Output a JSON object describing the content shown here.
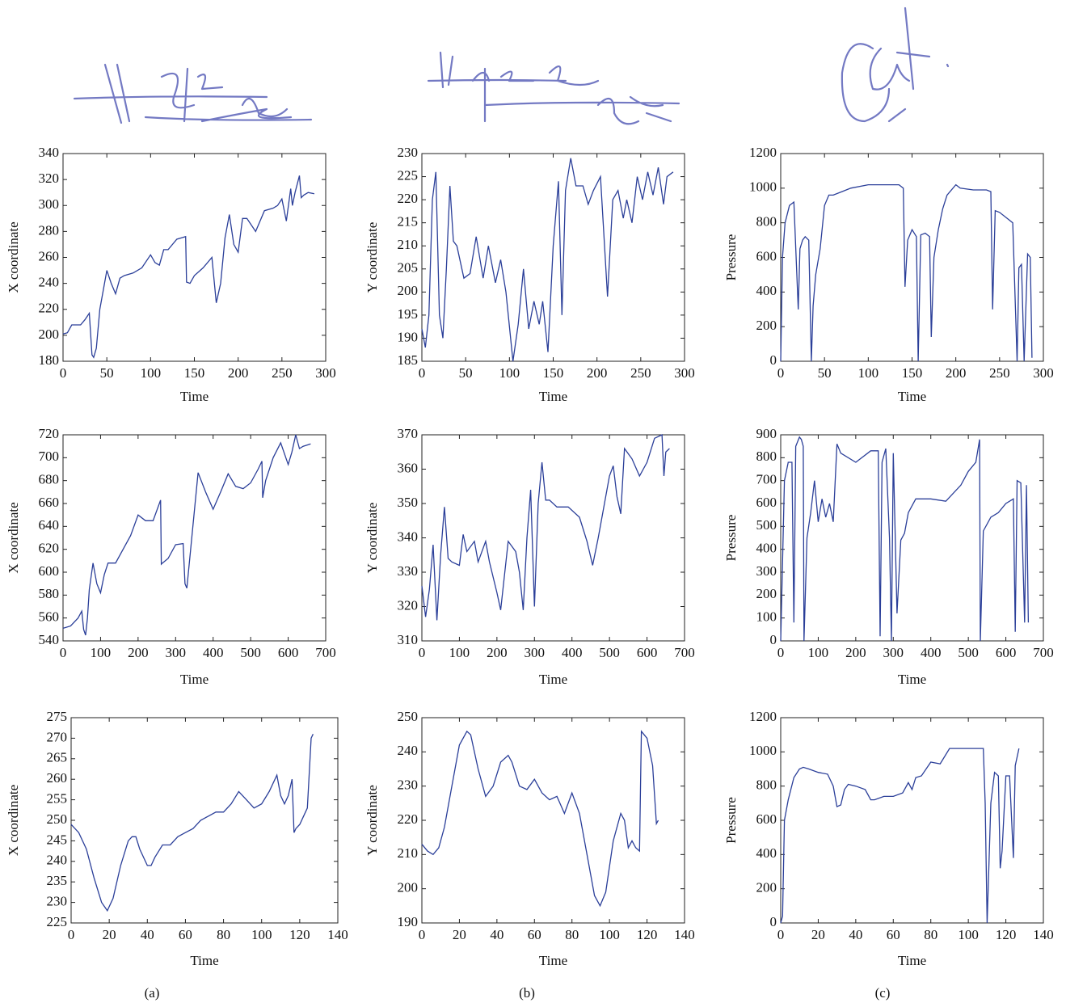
{
  "captions": [
    "(a)",
    "(b)",
    "(c)"
  ],
  "chart_data": [
    {
      "type": "line",
      "xlabel": "Time",
      "ylabel": "X coordinate",
      "color": "#2b3f99",
      "grid": false,
      "xlim": [
        0,
        300
      ],
      "ylim": [
        180,
        340
      ],
      "xticks": [
        0,
        50,
        100,
        150,
        200,
        250,
        300
      ],
      "yticks": [
        180,
        200,
        220,
        240,
        260,
        280,
        300,
        320,
        340
      ],
      "x": [
        0,
        5,
        10,
        15,
        20,
        25,
        30,
        33,
        35,
        38,
        42,
        50,
        55,
        60,
        65,
        70,
        80,
        90,
        100,
        105,
        110,
        115,
        120,
        130,
        140,
        141,
        145,
        150,
        160,
        170,
        175,
        180,
        185,
        190,
        195,
        200,
        205,
        210,
        220,
        225,
        230,
        240,
        245,
        250,
        255,
        260,
        262,
        265,
        270,
        272,
        275,
        280,
        287
      ],
      "values": [
        201,
        202,
        208,
        208,
        208,
        212,
        217,
        185,
        183,
        190,
        220,
        250,
        240,
        232,
        244,
        246,
        248,
        252,
        262,
        256,
        254,
        266,
        266,
        274,
        276,
        241,
        240,
        246,
        252,
        260,
        225,
        240,
        275,
        293,
        270,
        264,
        290,
        290,
        280,
        288,
        296,
        298,
        300,
        305,
        288,
        313,
        300,
        310,
        323,
        306,
        308,
        310,
        309
      ]
    },
    {
      "type": "line",
      "xlabel": "Time",
      "ylabel": "X coordinate",
      "color": "#2b3f99",
      "grid": false,
      "xlim": [
        0,
        700
      ],
      "ylim": [
        540,
        720
      ],
      "xticks": [
        0,
        100,
        200,
        300,
        400,
        500,
        600,
        700
      ],
      "yticks": [
        540,
        560,
        580,
        600,
        620,
        640,
        660,
        680,
        700,
        720
      ],
      "x": [
        0,
        20,
        40,
        50,
        55,
        60,
        65,
        70,
        80,
        90,
        100,
        110,
        120,
        140,
        160,
        180,
        200,
        220,
        240,
        260,
        262,
        265,
        280,
        300,
        320,
        325,
        330,
        340,
        360,
        380,
        400,
        420,
        440,
        460,
        480,
        500,
        520,
        530,
        532,
        540,
        560,
        580,
        600,
        610,
        620,
        630,
        640,
        660
      ],
      "values": [
        551,
        553,
        560,
        566,
        550,
        545,
        560,
        585,
        608,
        590,
        582,
        598,
        608,
        608,
        620,
        632,
        650,
        645,
        645,
        663,
        607,
        608,
        612,
        624,
        625,
        590,
        586,
        620,
        687,
        670,
        655,
        670,
        686,
        675,
        673,
        678,
        690,
        697,
        665,
        680,
        700,
        713,
        694,
        705,
        720,
        708,
        710,
        712
      ]
    },
    {
      "type": "line",
      "xlabel": "Time",
      "ylabel": "X coordinate",
      "color": "#2b3f99",
      "grid": false,
      "xlim": [
        0,
        140
      ],
      "ylim": [
        225,
        275
      ],
      "xticks": [
        0,
        20,
        40,
        60,
        80,
        100,
        120,
        140
      ],
      "yticks": [
        225,
        230,
        235,
        240,
        245,
        250,
        255,
        260,
        265,
        270,
        275
      ],
      "x": [
        0,
        4,
        8,
        12,
        16,
        19,
        22,
        26,
        30,
        32,
        34,
        36,
        40,
        42,
        44,
        48,
        52,
        56,
        60,
        64,
        68,
        72,
        76,
        80,
        84,
        88,
        92,
        96,
        100,
        104,
        108,
        110,
        112,
        114,
        116,
        117,
        118,
        120,
        124,
        126,
        127
      ],
      "values": [
        249,
        247,
        243,
        236,
        230,
        228,
        231,
        239,
        245,
        246,
        246,
        243,
        239,
        239,
        241,
        244,
        244,
        246,
        247,
        248,
        250,
        251,
        252,
        252,
        254,
        257,
        255,
        253,
        254,
        257,
        261,
        256,
        254,
        256,
        260,
        247,
        248,
        249,
        253,
        270,
        271
      ]
    },
    {
      "type": "line",
      "xlabel": "Time",
      "ylabel": "Y coordinate",
      "color": "#2b3f99",
      "grid": false,
      "xlim": [
        0,
        300
      ],
      "ylim": [
        185,
        230
      ],
      "xticks": [
        0,
        50,
        100,
        150,
        200,
        250,
        300
      ],
      "yticks": [
        185,
        190,
        195,
        200,
        205,
        210,
        215,
        220,
        225,
        230
      ],
      "x": [
        0,
        4,
        8,
        12,
        16,
        20,
        24,
        28,
        32,
        36,
        40,
        48,
        55,
        62,
        70,
        76,
        84,
        90,
        96,
        104,
        110,
        116,
        122,
        128,
        134,
        138,
        144,
        150,
        156,
        160,
        164,
        170,
        176,
        184,
        190,
        196,
        204,
        212,
        218,
        224,
        230,
        234,
        240,
        246,
        252,
        258,
        264,
        270,
        276,
        280,
        287
      ],
      "values": [
        192,
        188,
        195,
        220,
        226,
        195,
        190,
        205,
        223,
        211,
        210,
        203,
        204,
        212,
        203,
        210,
        202,
        207,
        200,
        185,
        193,
        205,
        192,
        198,
        193,
        198,
        187,
        210,
        224,
        195,
        222,
        229,
        223,
        223,
        219,
        222,
        225,
        199,
        220,
        222,
        216,
        220,
        215,
        225,
        220,
        226,
        221,
        227,
        219,
        225,
        226
      ]
    },
    {
      "type": "line",
      "xlabel": "Time",
      "ylabel": "Y coordinate",
      "color": "#2b3f99",
      "grid": false,
      "xlim": [
        0,
        700
      ],
      "ylim": [
        310,
        370
      ],
      "xticks": [
        0,
        100,
        200,
        300,
        400,
        500,
        600,
        700
      ],
      "yticks": [
        310,
        320,
        330,
        340,
        350,
        360,
        370
      ],
      "x": [
        0,
        10,
        20,
        30,
        40,
        50,
        60,
        70,
        80,
        100,
        110,
        120,
        140,
        150,
        170,
        180,
        200,
        210,
        230,
        250,
        260,
        270,
        280,
        290,
        300,
        310,
        320,
        330,
        340,
        360,
        390,
        420,
        440,
        455,
        470,
        500,
        510,
        520,
        530,
        540,
        560,
        580,
        600,
        620,
        640,
        645,
        650,
        660
      ],
      "values": [
        326,
        317,
        325,
        338,
        316,
        335,
        349,
        334,
        333,
        332,
        341,
        336,
        339,
        333,
        339,
        333,
        324,
        319,
        339,
        336,
        330,
        319,
        340,
        354,
        320,
        350,
        362,
        351,
        351,
        349,
        349,
        346,
        339,
        332,
        340,
        358,
        361,
        352,
        347,
        366,
        363,
        358,
        362,
        369,
        370,
        358,
        365,
        366
      ]
    },
    {
      "type": "line",
      "xlabel": "Time",
      "ylabel": "Y coordinate",
      "color": "#2b3f99",
      "grid": false,
      "xlim": [
        0,
        140
      ],
      "ylim": [
        190,
        250
      ],
      "xticks": [
        0,
        20,
        40,
        60,
        80,
        100,
        120,
        140
      ],
      "yticks": [
        190,
        200,
        210,
        220,
        230,
        240,
        250
      ],
      "x": [
        0,
        3,
        6,
        9,
        12,
        16,
        20,
        24,
        26,
        30,
        34,
        38,
        42,
        46,
        48,
        52,
        56,
        60,
        64,
        68,
        72,
        76,
        80,
        84,
        88,
        92,
        95,
        98,
        102,
        106,
        108,
        110,
        112,
        114,
        116,
        117,
        120,
        123,
        125,
        126
      ],
      "values": [
        213,
        211,
        210,
        212,
        218,
        230,
        242,
        246,
        245,
        235,
        227,
        230,
        237,
        239,
        237,
        230,
        229,
        232,
        228,
        226,
        227,
        222,
        228,
        222,
        210,
        198,
        195,
        199,
        214,
        222,
        220,
        212,
        214,
        212,
        211,
        246,
        244,
        236,
        219,
        220
      ]
    },
    {
      "type": "line",
      "xlabel": "Time",
      "ylabel": "Pressure",
      "color": "#2b3f99",
      "grid": false,
      "xlim": [
        0,
        300
      ],
      "ylim": [
        0,
        1200
      ],
      "xticks": [
        0,
        50,
        100,
        150,
        200,
        250,
        300
      ],
      "yticks": [
        0,
        200,
        400,
        600,
        800,
        1000,
        1200
      ],
      "x": [
        0,
        2,
        5,
        10,
        15,
        20,
        22,
        25,
        28,
        32,
        35,
        37,
        40,
        45,
        50,
        55,
        60,
        70,
        80,
        100,
        120,
        135,
        140,
        142,
        145,
        150,
        155,
        157,
        160,
        165,
        170,
        172,
        175,
        180,
        185,
        190,
        200,
        205,
        220,
        235,
        240,
        242,
        245,
        250,
        260,
        265,
        270,
        272,
        275,
        278,
        282,
        285,
        287
      ],
      "values": [
        0,
        600,
        800,
        900,
        920,
        300,
        650,
        700,
        720,
        700,
        0,
        320,
        500,
        650,
        900,
        960,
        960,
        980,
        1000,
        1020,
        1020,
        1020,
        1000,
        430,
        700,
        760,
        720,
        0,
        730,
        740,
        720,
        140,
        600,
        760,
        880,
        960,
        1020,
        1000,
        990,
        990,
        980,
        300,
        870,
        860,
        820,
        800,
        0,
        540,
        560,
        0,
        620,
        600,
        20
      ]
    },
    {
      "type": "line",
      "xlabel": "Time",
      "ylabel": "Pressure",
      "color": "#2b3f99",
      "grid": false,
      "xlim": [
        0,
        700
      ],
      "ylim": [
        0,
        900
      ],
      "xticks": [
        0,
        100,
        200,
        300,
        400,
        500,
        600,
        700
      ],
      "yticks": [
        0,
        100,
        200,
        300,
        400,
        500,
        600,
        700,
        800,
        900
      ],
      "x": [
        0,
        10,
        20,
        30,
        35,
        40,
        50,
        55,
        60,
        62,
        70,
        80,
        90,
        100,
        110,
        120,
        130,
        140,
        150,
        160,
        200,
        240,
        260,
        265,
        270,
        280,
        290,
        295,
        300,
        310,
        320,
        330,
        340,
        360,
        400,
        440,
        480,
        500,
        520,
        530,
        532,
        540,
        560,
        580,
        600,
        620,
        625,
        630,
        640,
        650,
        655,
        660
      ],
      "values": [
        0,
        700,
        780,
        780,
        80,
        850,
        890,
        880,
        850,
        0,
        450,
        560,
        700,
        520,
        620,
        540,
        600,
        520,
        860,
        820,
        780,
        830,
        830,
        20,
        780,
        840,
        450,
        0,
        820,
        120,
        440,
        470,
        560,
        620,
        620,
        610,
        680,
        740,
        780,
        880,
        0,
        480,
        540,
        560,
        600,
        620,
        40,
        700,
        690,
        80,
        680,
        80
      ]
    },
    {
      "type": "line",
      "xlabel": "Time",
      "ylabel": "Pressure",
      "color": "#2b3f99",
      "grid": false,
      "xlim": [
        0,
        140
      ],
      "ylim": [
        0,
        1200
      ],
      "xticks": [
        0,
        20,
        40,
        60,
        80,
        100,
        120,
        140
      ],
      "yticks": [
        0,
        200,
        400,
        600,
        800,
        1000,
        1200
      ],
      "x": [
        0,
        1,
        2,
        4,
        7,
        10,
        12,
        15,
        20,
        25,
        28,
        30,
        32,
        34,
        36,
        40,
        45,
        48,
        50,
        55,
        60,
        65,
        68,
        70,
        72,
        75,
        80,
        85,
        90,
        100,
        108,
        109,
        110,
        112,
        114,
        116,
        117,
        118,
        120,
        122,
        124,
        125,
        127
      ],
      "values": [
        0,
        40,
        600,
        720,
        850,
        900,
        910,
        900,
        880,
        870,
        800,
        680,
        690,
        780,
        810,
        800,
        780,
        720,
        720,
        740,
        740,
        760,
        820,
        780,
        850,
        860,
        940,
        930,
        1020,
        1020,
        1020,
        700,
        0,
        700,
        880,
        860,
        320,
        420,
        860,
        860,
        380,
        920,
        1020
      ]
    }
  ]
}
